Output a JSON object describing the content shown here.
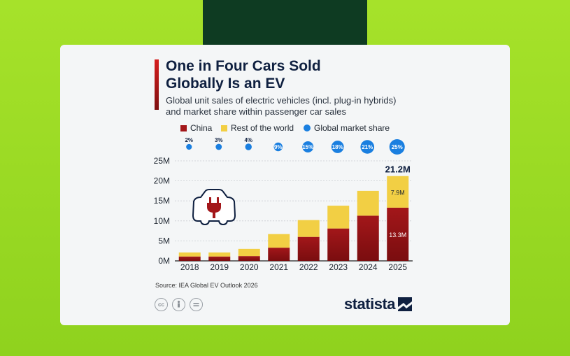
{
  "title_lines": [
    "One in Four Cars Sold",
    "Globally Is an EV"
  ],
  "subtitle_lines": [
    "Global unit sales of electric vehicles (incl. plug-in hybrids)",
    "and market share within passenger car sales"
  ],
  "legend": {
    "china": "China",
    "rest": "Rest of the world",
    "share": "Global market share"
  },
  "source": "Source: IEA Global EV Outlook 2026",
  "brand": "statista",
  "colors": {
    "china": "#a3171a",
    "china_dark": "#7a0d0f",
    "rest": "#f2cf44",
    "share": "#1a7fe0",
    "background": "#9ad924",
    "band": "#0e3b22"
  },
  "icons": [
    "ev-charger-car-icon",
    "cc-icon",
    "attribution-icon",
    "no-derivatives-icon",
    "statista-logo-icon"
  ],
  "chart_data": {
    "type": "bar",
    "stacked": true,
    "categories": [
      "2018",
      "2019",
      "2020",
      "2021",
      "2022",
      "2023",
      "2024",
      "2025"
    ],
    "series": [
      {
        "name": "China",
        "values": [
          1.1,
          1.1,
          1.2,
          3.3,
          6.0,
          8.1,
          11.3,
          13.3
        ]
      },
      {
        "name": "Rest of the world",
        "values": [
          1.0,
          1.0,
          1.8,
          3.4,
          4.2,
          5.7,
          6.2,
          7.9
        ]
      }
    ],
    "market_share": {
      "name": "Global market share",
      "values": [
        2,
        3,
        4,
        9,
        15,
        18,
        21,
        25
      ],
      "labels": [
        "2%",
        "3%",
        "4%",
        "9%",
        "15%",
        "18%",
        "21%",
        "25%"
      ]
    },
    "y_ticks": [
      "0M",
      "5M",
      "10M",
      "15M",
      "20M",
      "25M"
    ],
    "ylim": [
      0,
      25
    ],
    "annotations": {
      "total_2025": "21.2M",
      "rest_2025": "7.9M",
      "china_2025": "13.3M"
    },
    "grid": true,
    "legend_position": "top"
  }
}
